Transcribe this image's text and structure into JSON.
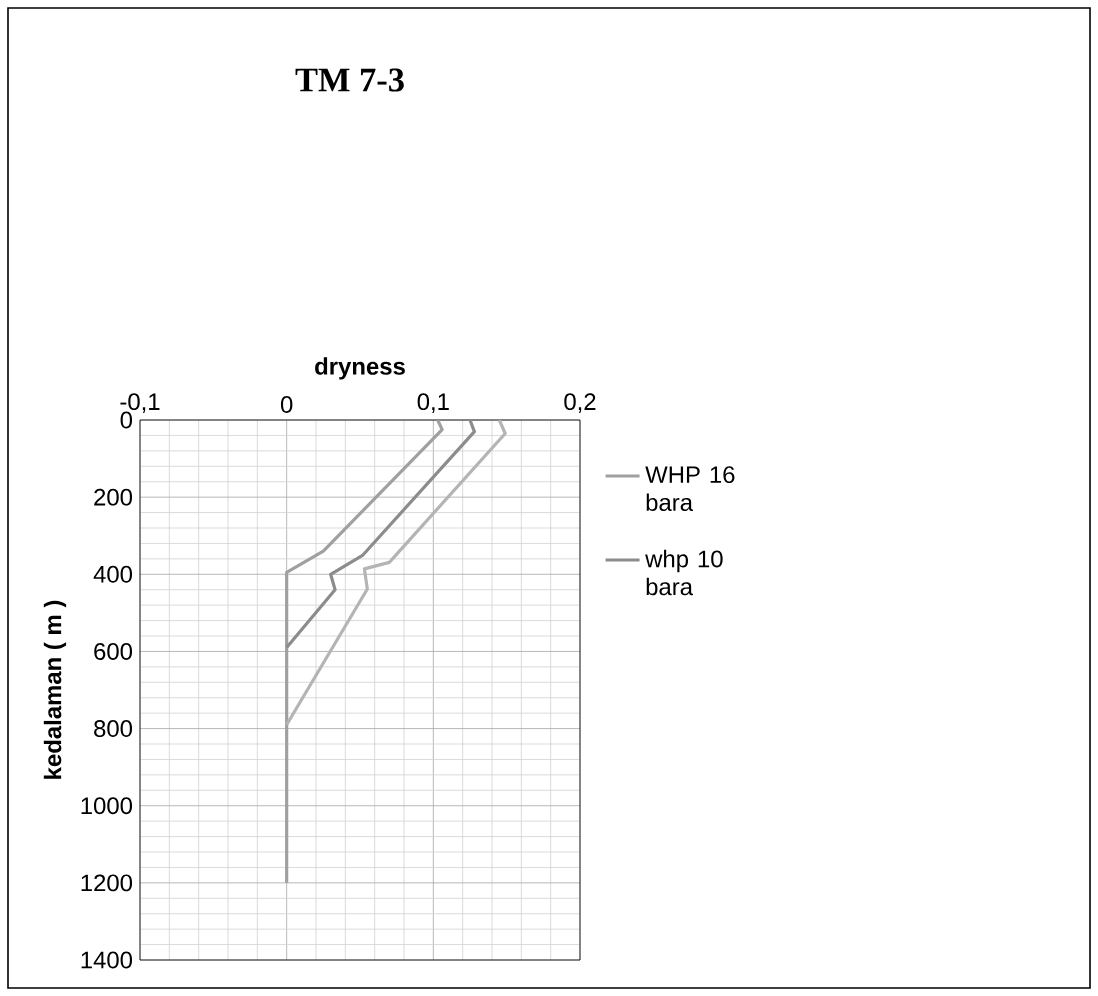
{
  "chart_data": {
    "type": "line",
    "title": "TM 7-3",
    "xlabel": "dryness",
    "ylabel": "kedalaman ( m )",
    "xlim": [
      -0.1,
      0.2
    ],
    "xticks": [
      {
        "value": -0.1,
        "label": "-0,1"
      },
      0,
      {
        "value": 0.1,
        "label": "0,1"
      },
      {
        "value": 0.2,
        "label": "0,2"
      }
    ],
    "ylim": [
      1400,
      0
    ],
    "yticks": [
      0,
      200,
      400,
      600,
      800,
      1000,
      1200,
      1400
    ],
    "grid": true,
    "legend": "right",
    "marker": "none",
    "line_style": "solid",
    "series": [
      {
        "name": "WHP 16 bara",
        "color": "#a0a0a0",
        "x": [
          0.103,
          0.106,
          0.025,
          0,
          0
        ],
        "values": [
          0,
          25,
          340,
          395,
          1200
        ]
      },
      {
        "name": "whp 10 bara",
        "color": "#8c8c8c",
        "x": [
          0.125,
          0.128,
          0.052,
          0.03,
          0.033,
          0
        ],
        "values": [
          0,
          30,
          350,
          400,
          440,
          590
        ]
      },
      {
        "color": "#b4b4b4",
        "x": [
          0.145,
          0.149,
          0.07,
          0.053,
          0.055,
          0
        ],
        "values": [
          0,
          35,
          369,
          386,
          438,
          790
        ]
      }
    ]
  }
}
